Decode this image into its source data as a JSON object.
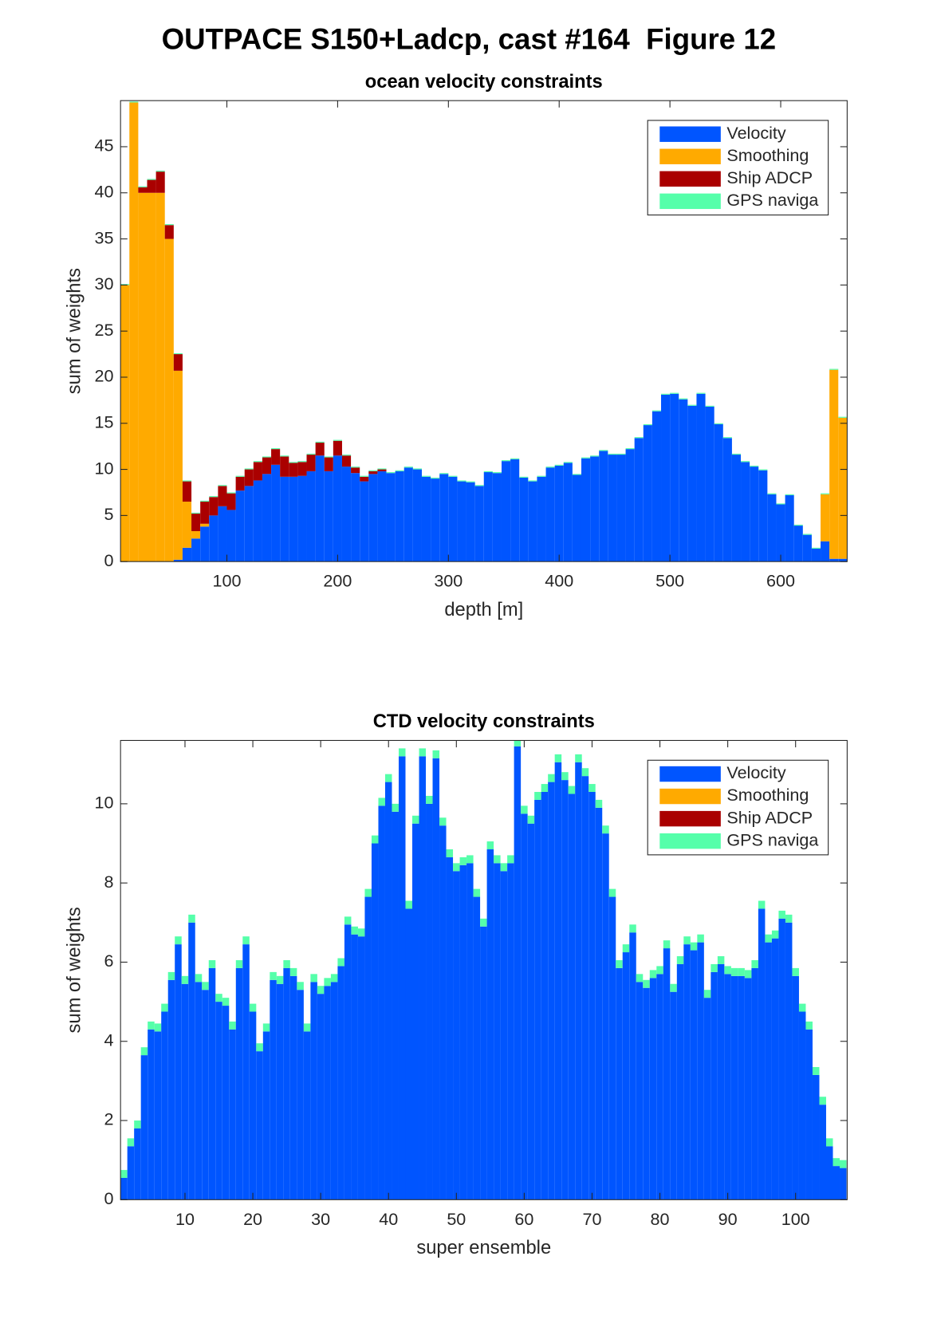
{
  "suptitle": "OUTPACE S150+Ladcp, cast #164  Figure 12",
  "chart_data": [
    {
      "type": "bar",
      "stacked": true,
      "title": "ocean velocity constraints",
      "xlabel": "depth [m]",
      "ylabel": "sum of weights",
      "x": [
        8,
        16,
        24,
        32,
        40,
        48,
        56,
        64,
        72,
        80,
        88,
        96,
        104,
        112,
        120,
        128,
        136,
        144,
        152,
        160,
        168,
        176,
        184,
        192,
        200,
        208,
        216,
        224,
        232,
        240,
        248,
        256,
        264,
        272,
        280,
        288,
        296,
        304,
        312,
        320,
        328,
        336,
        344,
        352,
        360,
        368,
        376,
        384,
        392,
        400,
        408,
        416,
        424,
        432,
        440,
        448,
        456,
        464,
        472,
        480,
        488,
        496,
        504,
        512,
        520,
        528,
        536,
        544,
        552,
        560,
        568,
        576,
        584,
        592,
        600,
        608,
        616,
        624,
        632,
        640,
        648,
        656
      ],
      "series": [
        {
          "name": "Velocity",
          "color": "#0055ff",
          "values": [
            0,
            0,
            0,
            0,
            0,
            0,
            0.2,
            1.5,
            2.5,
            3.8,
            5,
            6,
            5.6,
            7.7,
            8.2,
            8.8,
            9.5,
            10.5,
            9.2,
            9.2,
            9.3,
            9.8,
            11.5,
            9.8,
            11.5,
            10.3,
            9.6,
            8.7,
            9.5,
            9.8,
            9.6,
            9.8,
            10.2,
            10,
            9.2,
            9,
            9.5,
            9.2,
            8.7,
            8.6,
            8.2,
            9.7,
            9.6,
            10.9,
            11.1,
            9.1,
            8.7,
            9.2,
            10.2,
            10.4,
            10.7,
            9.4,
            11.2,
            11.4,
            12,
            11.6,
            11.6,
            12.2,
            13.4,
            14.8,
            16.3,
            18.1,
            18.2,
            17.6,
            16.9,
            18.2,
            16.8,
            14.9,
            13.4,
            11.6,
            10.8,
            10.3,
            9.9,
            7.3,
            6.2,
            7.2,
            3.9,
            2.9,
            1.4,
            2.2,
            0.3,
            0.3
          ]
        },
        {
          "name": "Smoothing",
          "color": "#ffaa00",
          "values": [
            30,
            49.8,
            40,
            40,
            40,
            35,
            20.5,
            5,
            0.8,
            0.3,
            0,
            0,
            0,
            0,
            0,
            0,
            0,
            0,
            0,
            0,
            0,
            0,
            0,
            0,
            0,
            0,
            0,
            0,
            0,
            0,
            0,
            0,
            0,
            0,
            0,
            0,
            0,
            0,
            0,
            0,
            0,
            0,
            0,
            0,
            0,
            0,
            0,
            0,
            0,
            0,
            0,
            0,
            0,
            0,
            0,
            0,
            0,
            0,
            0,
            0,
            0,
            0,
            0,
            0,
            0,
            0,
            0,
            0,
            0,
            0,
            0,
            0,
            0,
            0,
            0,
            0,
            0,
            0,
            0,
            5.1,
            20.5,
            15.3
          ]
        },
        {
          "name": "Ship ADCP",
          "color": "#aa0000",
          "values": [
            0,
            0,
            0.6,
            1.4,
            2.3,
            1.5,
            1.8,
            2.2,
            1.9,
            2.4,
            2,
            2.2,
            1.8,
            1.5,
            1.8,
            2,
            1.8,
            1.7,
            2.2,
            1.5,
            1.5,
            1.8,
            1.4,
            1.5,
            1.6,
            1.2,
            0.6,
            0.5,
            0.3,
            0.2,
            0,
            0,
            0,
            0,
            0,
            0,
            0,
            0,
            0,
            0,
            0,
            0,
            0,
            0,
            0,
            0,
            0,
            0,
            0,
            0,
            0,
            0,
            0,
            0,
            0,
            0,
            0,
            0,
            0,
            0,
            0,
            0,
            0,
            0,
            0,
            0,
            0,
            0,
            0,
            0,
            0,
            0,
            0,
            0,
            0,
            0,
            0,
            0,
            0,
            0,
            0,
            0
          ]
        },
        {
          "name": "GPS naviga",
          "color": "#55ffaa",
          "values": [
            0.1,
            0.1,
            0.1,
            0.1,
            0.1,
            0.1,
            0.1,
            0.1,
            0.1,
            0.1,
            0.1,
            0.1,
            0.1,
            0.1,
            0.1,
            0.1,
            0.1,
            0.1,
            0.1,
            0.1,
            0.1,
            0.1,
            0.1,
            0.1,
            0.1,
            0.1,
            0.1,
            0.1,
            0.1,
            0.1,
            0.1,
            0.1,
            0.1,
            0.1,
            0.1,
            0.1,
            0.1,
            0.1,
            0.1,
            0.1,
            0.1,
            0.1,
            0.1,
            0.1,
            0.1,
            0.1,
            0.1,
            0.1,
            0.1,
            0.1,
            0.1,
            0.1,
            0.1,
            0.1,
            0.1,
            0.1,
            0.1,
            0.1,
            0.1,
            0.1,
            0.1,
            0.1,
            0.1,
            0.1,
            0.1,
            0.1,
            0.1,
            0.1,
            0.1,
            0.1,
            0.1,
            0.1,
            0.1,
            0.1,
            0.1,
            0.1,
            0.1,
            0.1,
            0.1,
            0.1,
            0.1,
            0.1
          ]
        }
      ],
      "xlim": [
        4,
        660
      ],
      "ylim": [
        0,
        50
      ],
      "xticks": [
        100,
        200,
        300,
        400,
        500,
        600
      ],
      "yticks": [
        0,
        5,
        10,
        15,
        20,
        25,
        30,
        35,
        40,
        45
      ],
      "legend": "northeast"
    },
    {
      "type": "bar",
      "stacked": true,
      "title": "CTD velocity constraints",
      "xlabel": "super ensemble",
      "ylabel": "sum of weights",
      "x": [
        1,
        2,
        3,
        4,
        5,
        6,
        7,
        8,
        9,
        10,
        11,
        12,
        13,
        14,
        15,
        16,
        17,
        18,
        19,
        20,
        21,
        22,
        23,
        24,
        25,
        26,
        27,
        28,
        29,
        30,
        31,
        32,
        33,
        34,
        35,
        36,
        37,
        38,
        39,
        40,
        41,
        42,
        43,
        44,
        45,
        46,
        47,
        48,
        49,
        50,
        51,
        52,
        53,
        54,
        55,
        56,
        57,
        58,
        59,
        60,
        61,
        62,
        63,
        64,
        65,
        66,
        67,
        68,
        69,
        70,
        71,
        72,
        73,
        74,
        75,
        76,
        77,
        78,
        79,
        80,
        81,
        82,
        83,
        84,
        85,
        86,
        87,
        88,
        89,
        90,
        91,
        92,
        93,
        94,
        95,
        96,
        97,
        98,
        99,
        100,
        101,
        102,
        103,
        104,
        105,
        106,
        107
      ],
      "series": [
        {
          "name": "Velocity",
          "color": "#0055ff",
          "values": [
            0.55,
            1.35,
            1.8,
            3.65,
            4.3,
            4.25,
            4.75,
            5.55,
            6.45,
            5.45,
            7.0,
            5.5,
            5.3,
            5.85,
            5.0,
            4.9,
            4.3,
            5.85,
            6.45,
            4.75,
            3.75,
            4.25,
            5.55,
            5.45,
            5.85,
            5.65,
            5.3,
            4.25,
            5.5,
            5.2,
            5.4,
            5.5,
            5.9,
            6.95,
            6.7,
            6.65,
            7.65,
            9.0,
            9.95,
            10.55,
            9.8,
            11.2,
            7.35,
            9.5,
            11.2,
            10.0,
            11.15,
            9.45,
            8.65,
            8.3,
            8.45,
            8.5,
            7.65,
            6.9,
            8.85,
            8.5,
            8.3,
            8.5,
            11.45,
            9.75,
            9.5,
            10.1,
            10.3,
            10.55,
            11.05,
            10.6,
            10.25,
            11.05,
            10.7,
            10.3,
            9.9,
            9.25,
            7.65,
            5.85,
            6.25,
            6.75,
            5.5,
            5.35,
            5.6,
            5.7,
            6.35,
            5.25,
            5.95,
            6.45,
            6.3,
            6.5,
            5.1,
            5.75,
            5.95,
            5.7,
            5.65,
            5.65,
            5.6,
            5.85,
            7.35,
            6.5,
            6.6,
            7.1,
            7.0,
            5.65,
            4.75,
            4.3,
            3.15,
            2.4,
            1.35,
            0.85,
            0.8
          ]
        },
        {
          "name": "Smoothing",
          "color": "#ffaa00",
          "values": [
            0,
            0,
            0,
            0,
            0,
            0,
            0,
            0,
            0,
            0,
            0,
            0,
            0,
            0,
            0,
            0,
            0,
            0,
            0,
            0,
            0,
            0,
            0,
            0,
            0,
            0,
            0,
            0,
            0,
            0,
            0,
            0,
            0,
            0,
            0,
            0,
            0,
            0,
            0,
            0,
            0,
            0,
            0,
            0,
            0,
            0,
            0,
            0,
            0,
            0,
            0,
            0,
            0,
            0,
            0,
            0,
            0,
            0,
            0,
            0,
            0,
            0,
            0,
            0,
            0,
            0,
            0,
            0,
            0,
            0,
            0,
            0,
            0,
            0,
            0,
            0,
            0,
            0,
            0,
            0,
            0,
            0,
            0,
            0,
            0,
            0,
            0,
            0,
            0,
            0,
            0,
            0,
            0,
            0,
            0,
            0,
            0,
            0,
            0,
            0,
            0,
            0,
            0,
            0,
            0,
            0,
            0
          ]
        },
        {
          "name": "Ship ADCP",
          "color": "#aa0000",
          "values": [
            0,
            0,
            0,
            0,
            0,
            0,
            0,
            0,
            0,
            0,
            0,
            0,
            0,
            0,
            0,
            0,
            0,
            0,
            0,
            0,
            0,
            0,
            0,
            0,
            0,
            0,
            0,
            0,
            0,
            0,
            0,
            0,
            0,
            0,
            0,
            0,
            0,
            0,
            0,
            0,
            0,
            0,
            0,
            0,
            0,
            0,
            0,
            0,
            0,
            0,
            0,
            0,
            0,
            0,
            0,
            0,
            0,
            0,
            0,
            0,
            0,
            0,
            0,
            0,
            0,
            0,
            0,
            0,
            0,
            0,
            0,
            0,
            0,
            0,
            0,
            0,
            0,
            0,
            0,
            0,
            0,
            0,
            0,
            0,
            0,
            0,
            0,
            0,
            0,
            0,
            0,
            0,
            0,
            0,
            0,
            0,
            0,
            0,
            0,
            0,
            0,
            0,
            0,
            0,
            0,
            0,
            0
          ]
        },
        {
          "name": "GPS naviga",
          "color": "#55ffaa",
          "values": [
            0.2,
            0.2,
            0.2,
            0.2,
            0.2,
            0.2,
            0.2,
            0.2,
            0.2,
            0.2,
            0.2,
            0.2,
            0.2,
            0.2,
            0.2,
            0.2,
            0.2,
            0.2,
            0.2,
            0.2,
            0.2,
            0.2,
            0.2,
            0.2,
            0.2,
            0.2,
            0.2,
            0.2,
            0.2,
            0.2,
            0.2,
            0.2,
            0.2,
            0.2,
            0.2,
            0.2,
            0.2,
            0.2,
            0.2,
            0.2,
            0.2,
            0.2,
            0.2,
            0.2,
            0.2,
            0.2,
            0.2,
            0.2,
            0.2,
            0.2,
            0.2,
            0.2,
            0.2,
            0.2,
            0.2,
            0.2,
            0.2,
            0.2,
            0.2,
            0.2,
            0.2,
            0.2,
            0.2,
            0.2,
            0.2,
            0.2,
            0.2,
            0.2,
            0.2,
            0.2,
            0.2,
            0.2,
            0.2,
            0.2,
            0.2,
            0.2,
            0.2,
            0.2,
            0.2,
            0.2,
            0.2,
            0.2,
            0.2,
            0.2,
            0.2,
            0.2,
            0.2,
            0.2,
            0.2,
            0.2,
            0.2,
            0.2,
            0.2,
            0.2,
            0.2,
            0.2,
            0.2,
            0.2,
            0.2,
            0.2,
            0.2,
            0.2,
            0.2,
            0.2,
            0.2,
            0.2,
            0.2
          ]
        }
      ],
      "xlim": [
        0.5,
        107.6
      ],
      "ylim": [
        0,
        11.6
      ],
      "xticks": [
        10,
        20,
        30,
        40,
        50,
        60,
        70,
        80,
        90,
        100
      ],
      "yticks": [
        0,
        2,
        4,
        6,
        8,
        10
      ],
      "legend": "northeast"
    }
  ]
}
